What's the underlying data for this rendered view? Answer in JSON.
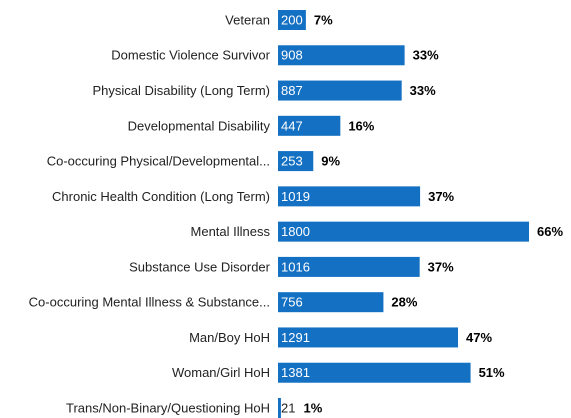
{
  "chart_data": {
    "type": "bar",
    "orientation": "horizontal",
    "color": "#1470c2",
    "categories": [
      "Veteran",
      "Domestic Violence Survivor",
      "Physical Disability (Long Term)",
      "Developmental Disability",
      "Co-occuring Physical/Developmental...",
      "Chronic Health Condition (Long Term)",
      "Mental Illness",
      "Substance Use Disorder",
      "Co-occuring Mental Illness & Substance...",
      "Man/Boy HoH",
      "Woman/Girl HoH",
      "Trans/Non-Binary/Questioning HoH"
    ],
    "values": [
      200,
      908,
      887,
      447,
      253,
      1019,
      1800,
      1016,
      756,
      1291,
      1381,
      21
    ],
    "shares": [
      7,
      33,
      33,
      16,
      9,
      37,
      66,
      37,
      28,
      47,
      51,
      1
    ],
    "share_labels": [
      "7%",
      "33%",
      "33%",
      "16%",
      "9%",
      "37%",
      "66%",
      "37%",
      "28%",
      "47%",
      "51%",
      "1%"
    ]
  }
}
